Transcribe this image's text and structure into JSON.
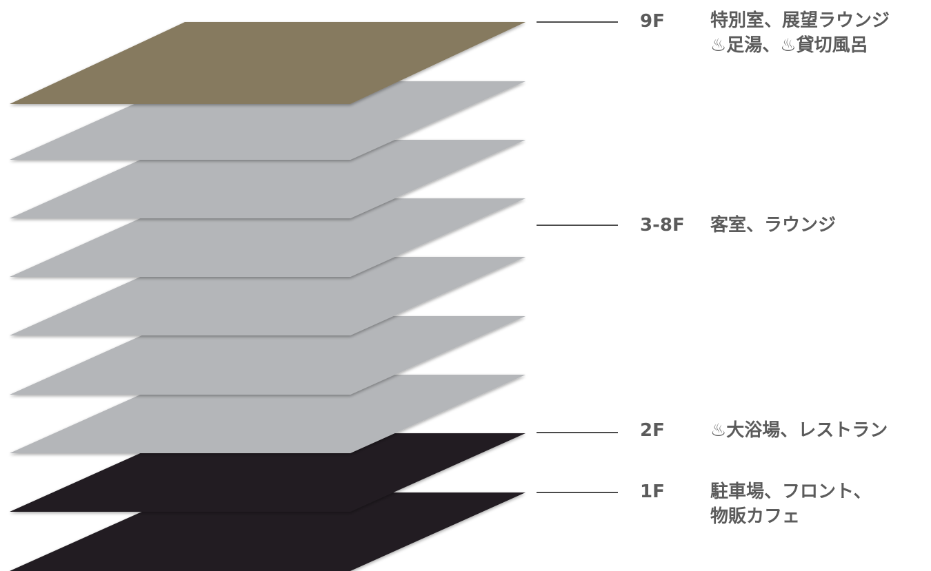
{
  "colors": {
    "top_floor": "#867a5f",
    "middle_floor": "#b4b6b9",
    "bottom_floor": "#231f24",
    "leader_line": "#4a4a4a",
    "text": "#5b5b5b"
  },
  "floors": [
    {
      "label": "9F",
      "lines": [
        "特別室、展望ラウンジ",
        "♨足湯、♨貸切風呂"
      ]
    },
    {
      "label": "3-8F",
      "lines": [
        "客室、ラウンジ"
      ]
    },
    {
      "label": "2F",
      "lines": [
        "♨大浴場、レストラン"
      ]
    },
    {
      "label": "1F",
      "lines": [
        "駐車場、フロント、",
        "物販カフェ"
      ]
    }
  ]
}
